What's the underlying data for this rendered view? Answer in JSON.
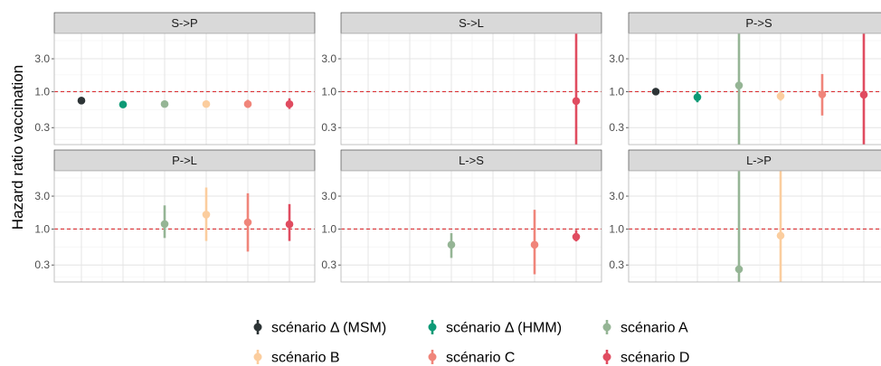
{
  "chart_data": {
    "type": "scatter",
    "title": "",
    "xlabel": "",
    "ylabel": "Hazard ratio vaccination",
    "y_scale": "log",
    "ylim": [
      0.17,
      7.0
    ],
    "y_ticks": [
      "0.3",
      "1.0",
      "3.0"
    ],
    "reference_line": 1.0,
    "grid": true,
    "legend_position": "bottom",
    "series": [
      {
        "name": "scénario Δ (MSM)",
        "color": "#2d3436"
      },
      {
        "name": "scénario Δ (HMM)",
        "color": "#0d9a76"
      },
      {
        "name": "scénario A",
        "color": "#95b595"
      },
      {
        "name": "scénario B",
        "color": "#fbcd9e"
      },
      {
        "name": "scénario C",
        "color": "#f0857a"
      },
      {
        "name": "scénario D",
        "color": "#e04c60"
      }
    ],
    "panels": [
      {
        "strip": "S->P",
        "points": [
          {
            "series": 0,
            "est": 0.74,
            "lo": 0.7,
            "hi": 0.79
          },
          {
            "series": 1,
            "est": 0.65,
            "lo": 0.58,
            "hi": 0.73
          },
          {
            "series": 2,
            "est": 0.66,
            "lo": 0.59,
            "hi": 0.74
          },
          {
            "series": 3,
            "est": 0.66,
            "lo": 0.59,
            "hi": 0.74
          },
          {
            "series": 4,
            "est": 0.66,
            "lo": 0.58,
            "hi": 0.76
          },
          {
            "series": 5,
            "est": 0.66,
            "lo": 0.56,
            "hi": 0.8
          }
        ]
      },
      {
        "strip": "S->L",
        "points": [
          {
            "series": 5,
            "est": 0.73,
            "lo": 0.15,
            "hi": 8.0
          }
        ]
      },
      {
        "strip": "P->S",
        "points": [
          {
            "series": 0,
            "est": 1.0,
            "lo": 0.97,
            "hi": 1.03
          },
          {
            "series": 1,
            "est": 0.83,
            "lo": 0.7,
            "hi": 1.0
          },
          {
            "series": 2,
            "est": 1.23,
            "lo": 0.15,
            "hi": 8.0
          },
          {
            "series": 3,
            "est": 0.86,
            "lo": 0.74,
            "hi": 1.0
          },
          {
            "series": 4,
            "est": 0.91,
            "lo": 0.45,
            "hi": 1.8
          },
          {
            "series": 5,
            "est": 0.9,
            "lo": 0.15,
            "hi": 8.0
          }
        ]
      },
      {
        "strip": "P->L",
        "points": [
          {
            "series": 2,
            "est": 1.18,
            "lo": 0.74,
            "hi": 2.2
          },
          {
            "series": 3,
            "est": 1.62,
            "lo": 0.67,
            "hi": 4.0
          },
          {
            "series": 4,
            "est": 1.25,
            "lo": 0.47,
            "hi": 3.3
          },
          {
            "series": 5,
            "est": 1.17,
            "lo": 0.67,
            "hi": 2.3
          }
        ]
      },
      {
        "strip": "L->S",
        "points": [
          {
            "series": 2,
            "est": 0.59,
            "lo": 0.38,
            "hi": 0.87
          },
          {
            "series": 4,
            "est": 0.59,
            "lo": 0.22,
            "hi": 1.9
          },
          {
            "series": 5,
            "est": 0.77,
            "lo": 0.66,
            "hi": 0.97
          }
        ]
      },
      {
        "strip": "L->P",
        "points": [
          {
            "series": 2,
            "est": 0.26,
            "lo": 0.15,
            "hi": 8.0
          },
          {
            "series": 3,
            "est": 0.8,
            "lo": 0.15,
            "hi": 8.0
          }
        ]
      }
    ]
  }
}
